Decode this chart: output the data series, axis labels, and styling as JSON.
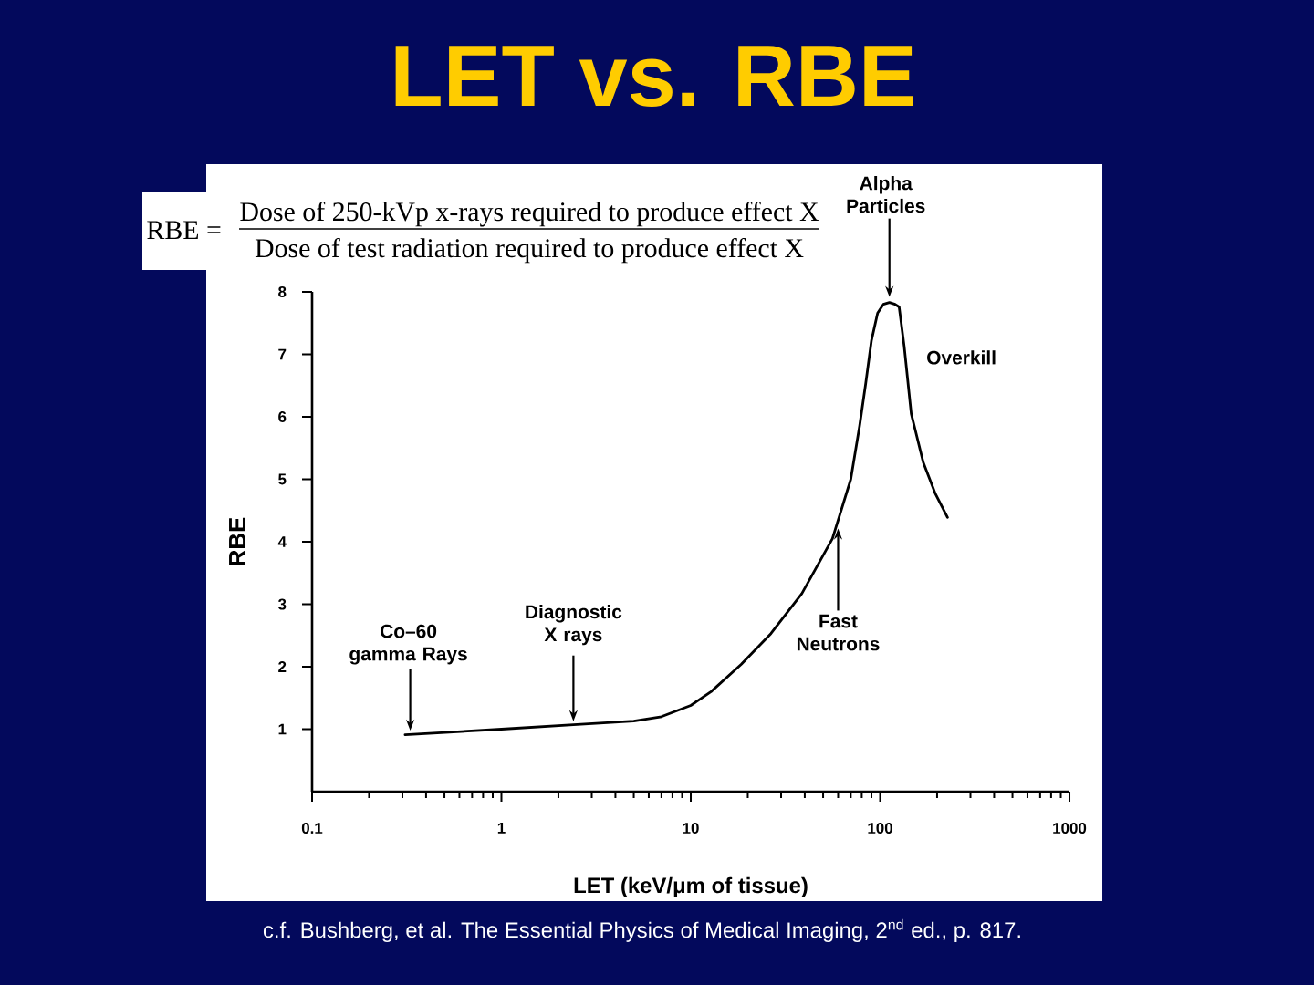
{
  "chart_data": {
    "type": "line",
    "title": "LET vs. RBE",
    "xlabel": "LET (keV/μm of tissue)",
    "ylabel": "RBE",
    "x": [
      0.31,
      1,
      2.4,
      5,
      7,
      10,
      12.8,
      18.5,
      26.5,
      38.6,
      56,
      70,
      78,
      84,
      90,
      97,
      104,
      112,
      120,
      126,
      134,
      146,
      169,
      195,
      227
    ],
    "values": [
      0.91,
      1.0,
      1.07,
      1.13,
      1.2,
      1.38,
      1.6,
      2.04,
      2.53,
      3.17,
      4.05,
      5.0,
      5.86,
      6.54,
      7.22,
      7.66,
      7.8,
      7.83,
      7.8,
      7.76,
      7.13,
      6.05,
      5.27,
      4.78,
      4.39
    ],
    "color": "#000000",
    "xlim": [
      0.1,
      1000
    ],
    "ylim": [
      0,
      8
    ],
    "xticks": [
      0.1,
      1,
      10,
      100,
      1000
    ],
    "yticks": [
      1,
      2,
      3,
      4,
      5,
      6,
      7,
      8
    ],
    "log": "x",
    "annotations": [
      "RBE =",
      "Dose of 250-kVp x-rays required to produce effect X",
      "Dose of test radiation required to produce effect X",
      {
        "text": "Alpha Particles",
        "x": 112,
        "y": 7.83
      },
      {
        "text": "Overkill",
        "x": 140,
        "y": 6.6
      },
      {
        "text": "Co–60 gamma Rays",
        "x": 0.33,
        "y": 0.92
      },
      {
        "text": "Diagnostic X rays",
        "x": 2.4,
        "y": 1.07
      },
      {
        "text": "Fast Neutrons",
        "x": 60,
        "y": 4.3
      },
      "c.f. Bushberg, et al. The Essential Physics of Medical Imaging, 2$^{nd}$ ed., p. 817."
    ]
  }
}
